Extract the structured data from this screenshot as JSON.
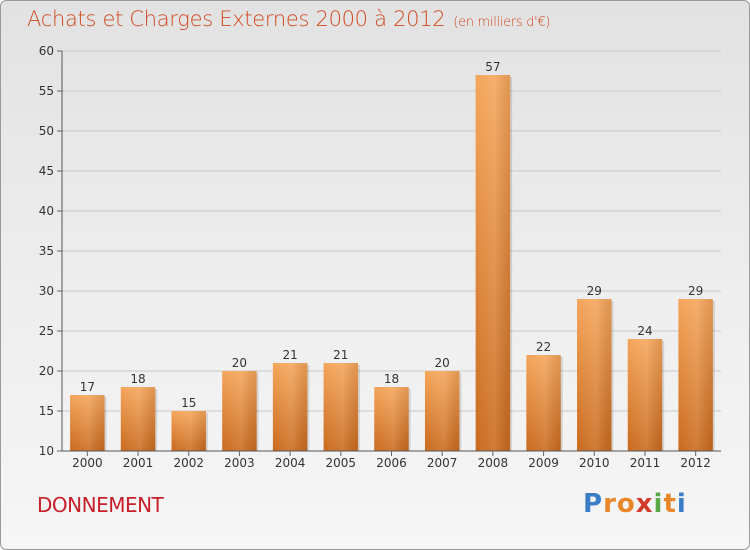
{
  "title": "Achats et Charges Externes 2000 à 2012",
  "unit_label": "(en milliers d'€)",
  "commune": "DONNEMENT",
  "logo": {
    "letters": [
      "P",
      "r",
      "o",
      "x",
      "i",
      "t",
      "i"
    ],
    "colors": [
      "#3a7dc6",
      "#e8862a",
      "#e8862a",
      "#d23a2c",
      "#58a845",
      "#e8862a",
      "#3a7dc6"
    ]
  },
  "chart_data": {
    "type": "bar",
    "categories": [
      "2000",
      "2001",
      "2002",
      "2003",
      "2004",
      "2005",
      "2006",
      "2007",
      "2008",
      "2009",
      "2010",
      "2011",
      "2012"
    ],
    "values": [
      17,
      18,
      15,
      20,
      21,
      21,
      18,
      20,
      57,
      22,
      29,
      24,
      29
    ],
    "data_labels": [
      "17",
      "18",
      "15",
      "20",
      "21",
      "21",
      "18",
      "20",
      "57",
      "22",
      "29",
      "24",
      "29"
    ],
    "yticks": [
      "10",
      "15",
      "20",
      "25",
      "30",
      "35",
      "40",
      "45",
      "50",
      "55",
      "60"
    ],
    "ylim": [
      10,
      60
    ],
    "grid": true,
    "bar_color_top": "#f5a55a",
    "bar_color_bottom": "#c96a1e"
  }
}
